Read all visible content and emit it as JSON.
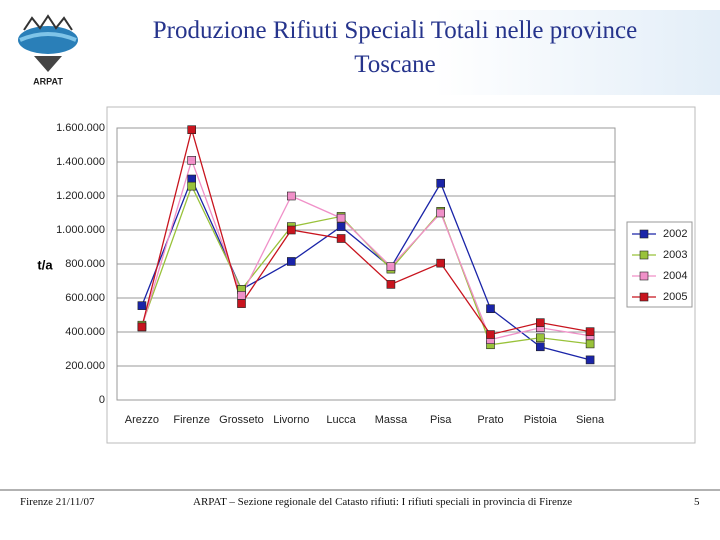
{
  "chart_data": {
    "type": "line",
    "title": "Produzione Rifiuti Speciali Totali nelle province Toscane",
    "ylabel": "t/a",
    "categories": [
      "Arezzo",
      "Firenze",
      "Grosseto",
      "Livorno",
      "Lucca",
      "Massa",
      "Pisa",
      "Prato",
      "Pistoia",
      "Siena"
    ],
    "series": [
      {
        "name": "2002",
        "color": "#1a24a8",
        "values": [
          555000,
          1300000,
          650000,
          815000,
          1020000,
          780000,
          1275000,
          537000,
          313000,
          236000
        ]
      },
      {
        "name": "2003",
        "color": "#99c23a",
        "values": [
          440000,
          1258000,
          650000,
          1020000,
          1080000,
          770000,
          1110000,
          325000,
          366000,
          330000
        ]
      },
      {
        "name": "2004",
        "color": "#f090c8",
        "values": [
          430000,
          1410000,
          615000,
          1200000,
          1070000,
          785000,
          1100000,
          355000,
          425000,
          378000
        ]
      },
      {
        "name": "2005",
        "color": "#c8141e",
        "values": [
          430000,
          1590000,
          567000,
          1000000,
          950000,
          680000,
          805000,
          385000,
          455000,
          402000
        ]
      }
    ],
    "ylim": [
      0,
      1600000
    ],
    "yticks": [
      0,
      {
        "value": 200000,
        "label": "200.000"
      },
      {
        "value": 400000,
        "label": "400.000"
      },
      {
        "value": 600000,
        "label": "600.000"
      },
      {
        "value": 800000,
        "label": "800.000"
      },
      {
        "value": 1000000,
        "label": "1.000.000"
      },
      {
        "value": 1200000,
        "label": "1.200.000"
      },
      {
        "value": 1400000,
        "label": "1.400.000"
      },
      {
        "value": 1600000,
        "label": "1.600.000"
      }
    ],
    "grid": true,
    "legend": "right"
  },
  "header": {
    "logo_text": "ARPAT"
  },
  "footer": {
    "date": "Firenze 21/11/07",
    "source": "ARPAT – Sezione regionale del Catasto rifiuti: I rifiuti speciali in provincia di Firenze",
    "page": "5"
  }
}
